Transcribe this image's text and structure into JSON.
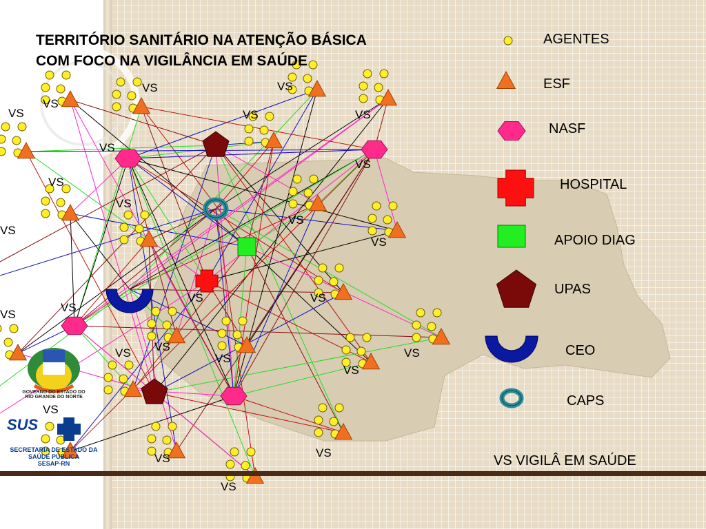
{
  "title": {
    "line1": "TERRITÓRIO SANITÁRIO NA ATENÇÃO BÁSICA",
    "line2": "COM FOCO NA VIGILÂNCIA EM SAÚDE"
  },
  "legend": {
    "agentes": "AGENTES",
    "esf": "ESF",
    "nasf": "NASF",
    "hospital": "HOSPITAL",
    "apoio_diag": "APOIO DIAG",
    "upas": "UPAS",
    "ceo": "CEO",
    "caps": "CAPS",
    "vs": "VS  VIGILÂ EM SAÚDE"
  },
  "vs_label": "VS",
  "logo": {
    "state_line1": "GOVERNO DO ESTADO DO",
    "state_line2": "RIO GRANDE DO NORTE",
    "sus": "SUS",
    "secretaria_line1": "SECRETARIA DE ESTADO DA",
    "secretaria_line2": "SAÚDE PÚBLICA",
    "secretaria_line3": "SESAP-RN"
  },
  "colors": {
    "agente": "#ffef2a",
    "esf": "#f07020",
    "nasf": "#ff2a8a",
    "hospital": "#ff1010",
    "apoio_diag": "#22ee22",
    "upas": "#7a0a0a",
    "ceo": "#0a1aa0",
    "caps": "#2a8a9a",
    "map_fill": "#d8ccb2"
  }
}
